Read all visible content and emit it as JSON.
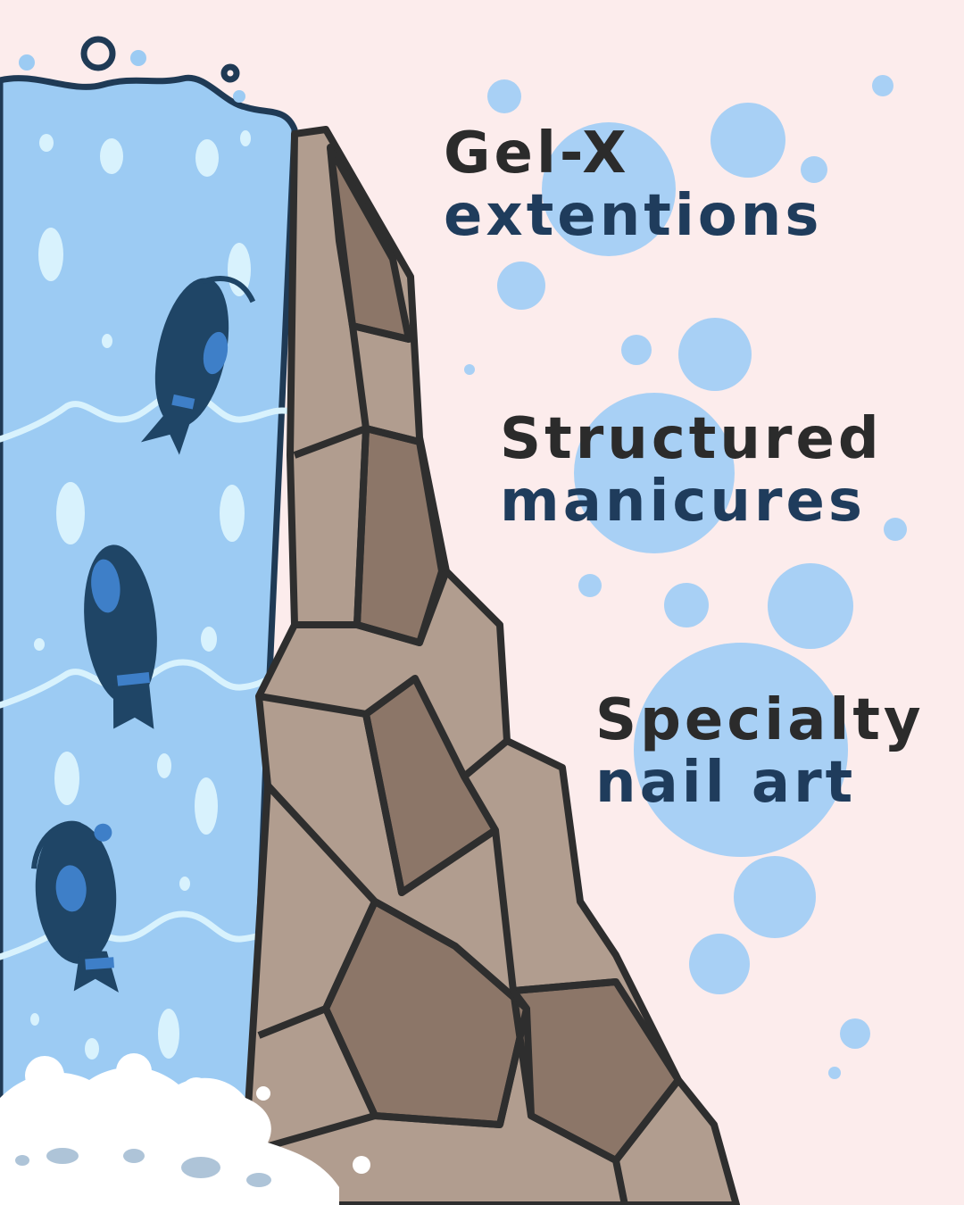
{
  "services": [
    {
      "line1": "Gel-X",
      "line2": "extentions"
    },
    {
      "line1": "Structured",
      "line2": "manicures"
    },
    {
      "line1": "Specialty",
      "line2": "nail art"
    }
  ],
  "colors": {
    "background": "#fcecec",
    "water": "#9ccbf3",
    "water_highlight": "#d8f2fd",
    "bubble": "#a8d0f5",
    "rock": "#b19d8f",
    "rock_dark": "#8c7668",
    "outline": "#2e2e2e",
    "fish": "#1f4566",
    "fish_accent": "#3e7fc8",
    "text_dark": "#2b2b2b",
    "text_navy": "#1f3c5c",
    "foam": "#ffffff"
  },
  "icons": [
    "waterfall",
    "rock-cliff",
    "fish",
    "bubble",
    "foam"
  ]
}
